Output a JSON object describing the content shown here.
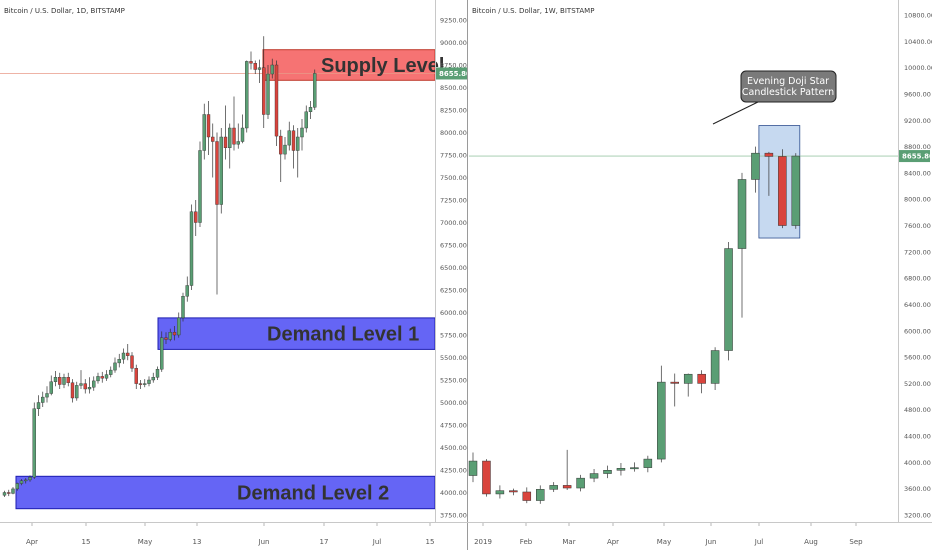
{
  "colors": {
    "up": "#5a9e74",
    "down": "#d9443d",
    "supply": "#f45b5b",
    "demand": "#3f3ff2",
    "highlight": "#8db4e2"
  },
  "chart_data": [
    {
      "type": "candlestick",
      "title": "Bitcoin / U.S. Dollar, 1D, BITSTAMP",
      "x_ticks": [
        "Apr",
        "15",
        "May",
        "13",
        "Jun",
        "17",
        "Jul",
        "15"
      ],
      "y_ticks": [
        "9250.00",
        "9000.00",
        "8750.00",
        "8500.00",
        "8250.00",
        "8000.00",
        "7750.00",
        "7500.00",
        "7250.00",
        "7000.00",
        "6750.00",
        "6500.00",
        "6250.00",
        "6000.00",
        "5750.00",
        "5500.00",
        "5250.00",
        "5000.00",
        "4750.00",
        "4500.00",
        "4250.00",
        "4000.00",
        "3750.00"
      ],
      "ylim": [
        3650,
        9400
      ],
      "last_price": "8655.80",
      "zones": [
        {
          "label": "Supply Level",
          "low": 8580,
          "high": 8920
        },
        {
          "label": "Demand Level 1",
          "low": 5590,
          "high": 5940
        },
        {
          "label": "Demand Level 2",
          "low": 3820,
          "high": 4180
        }
      ],
      "candles": [
        [
          3970,
          4000,
          3950,
          4020
        ],
        [
          4000,
          3990,
          3960,
          4030
        ],
        [
          3990,
          4040,
          3980,
          4060
        ],
        [
          4040,
          4100,
          4020,
          4110
        ],
        [
          4100,
          4130,
          4080,
          4150
        ],
        [
          4130,
          4140,
          4100,
          4160
        ],
        [
          4140,
          4170,
          4120,
          4190
        ],
        [
          4170,
          4930,
          4150,
          5000
        ],
        [
          4930,
          5000,
          4850,
          5080
        ],
        [
          5000,
          5060,
          4950,
          5120
        ],
        [
          5060,
          5100,
          5000,
          5180
        ],
        [
          5100,
          5230,
          5080,
          5300
        ],
        [
          5230,
          5280,
          5180,
          5350
        ],
        [
          5280,
          5200,
          5150,
          5330
        ],
        [
          5200,
          5280,
          5160,
          5320
        ],
        [
          5280,
          5220,
          5180,
          5330
        ],
        [
          5220,
          5050,
          5000,
          5260
        ],
        [
          5050,
          5190,
          5020,
          5230
        ],
        [
          5190,
          5210,
          5150,
          5360
        ],
        [
          5210,
          5150,
          5100,
          5260
        ],
        [
          5150,
          5170,
          5100,
          5280
        ],
        [
          5170,
          5240,
          5130,
          5290
        ],
        [
          5240,
          5290,
          5210,
          5330
        ],
        [
          5290,
          5270,
          5220,
          5340
        ],
        [
          5270,
          5310,
          5240,
          5360
        ],
        [
          5310,
          5360,
          5280,
          5400
        ],
        [
          5360,
          5440,
          5330,
          5500
        ],
        [
          5440,
          5480,
          5390,
          5540
        ],
        [
          5480,
          5550,
          5430,
          5600
        ],
        [
          5550,
          5520,
          5470,
          5650
        ],
        [
          5520,
          5380,
          5340,
          5560
        ],
        [
          5380,
          5210,
          5150,
          5420
        ],
        [
          5210,
          5200,
          5150,
          5250
        ],
        [
          5200,
          5210,
          5170,
          5260
        ],
        [
          5210,
          5250,
          5180,
          5290
        ],
        [
          5250,
          5280,
          5220,
          5330
        ],
        [
          5280,
          5370,
          5250,
          5400
        ],
        [
          5370,
          5720,
          5340,
          5790
        ],
        [
          5720,
          5700,
          5650,
          5780
        ],
        [
          5700,
          5780,
          5680,
          5820
        ],
        [
          5780,
          5750,
          5690,
          5850
        ],
        [
          5750,
          5940,
          5720,
          6000
        ],
        [
          5940,
          6180,
          5900,
          6220
        ],
        [
          6180,
          6300,
          6120,
          6400
        ],
        [
          6300,
          7120,
          6250,
          7200
        ],
        [
          7120,
          7000,
          6850,
          7250
        ],
        [
          7000,
          7800,
          6950,
          7900
        ],
        [
          7800,
          8200,
          7700,
          8320
        ],
        [
          8200,
          7950,
          7750,
          8350
        ],
        [
          7950,
          7900,
          7500,
          8100
        ],
        [
          7900,
          7200,
          6200,
          8000
        ],
        [
          7200,
          7950,
          7100,
          8050
        ],
        [
          7950,
          7830,
          7700,
          8300
        ],
        [
          7830,
          8050,
          7600,
          8100
        ],
        [
          8050,
          7870,
          7800,
          8400
        ],
        [
          7870,
          7900,
          7820,
          8100
        ],
        [
          7900,
          8050,
          7880,
          8200
        ],
        [
          8050,
          8790,
          8000,
          8800
        ],
        [
          8790,
          8770,
          8700,
          8900
        ],
        [
          8770,
          8700,
          8650,
          8800
        ],
        [
          8700,
          8720,
          8550,
          8810
        ],
        [
          8720,
          8200,
          8050,
          9070
        ],
        [
          8200,
          8650,
          8150,
          8750
        ],
        [
          8650,
          8750,
          8600,
          8820
        ],
        [
          8750,
          7960,
          7850,
          8800
        ],
        [
          7960,
          7760,
          7450,
          8030
        ],
        [
          7760,
          7860,
          7700,
          7950
        ],
        [
          7860,
          8020,
          7800,
          8120
        ],
        [
          8020,
          7800,
          7600,
          8080
        ],
        [
          7800,
          7950,
          7500,
          8050
        ],
        [
          7950,
          8050,
          7800,
          8150
        ],
        [
          8050,
          8230,
          8000,
          8300
        ],
        [
          8230,
          8280,
          8150,
          8350
        ],
        [
          8280,
          8656,
          8250,
          8700
        ]
      ]
    },
    {
      "type": "candlestick",
      "title": "Bitcoin / U.S. Dollar, 1W, BITSTAMP",
      "x_ticks": [
        "2019",
        "Feb",
        "Mar",
        "Apr",
        "May",
        "Jun",
        "Jul",
        "Aug",
        "Sep"
      ],
      "y_ticks": [
        "10800.00",
        "10400.00",
        "10000.00",
        "9600.00",
        "9200.00",
        "8800.00",
        "8400.00",
        "8000.00",
        "7600.00",
        "7200.00",
        "6800.00",
        "6400.00",
        "6000.00",
        "5600.00",
        "5200.00",
        "4800.00",
        "4400.00",
        "4000.00",
        "3600.00",
        "3200.00"
      ],
      "ylim": [
        3050,
        11000
      ],
      "last_price": "8655.80",
      "annotation": "Evening Doji Star\nCandlestick Pattern",
      "candles": [
        [
          3800,
          4020,
          3700,
          4150
        ],
        [
          4020,
          3520,
          3480,
          4050
        ],
        [
          3520,
          3570,
          3450,
          3650
        ],
        [
          3570,
          3550,
          3500,
          3600
        ],
        [
          3550,
          3420,
          3380,
          3620
        ],
        [
          3420,
          3590,
          3370,
          3650
        ],
        [
          3590,
          3650,
          3550,
          3700
        ],
        [
          3650,
          3610,
          3580,
          4190
        ],
        [
          3610,
          3760,
          3560,
          3810
        ],
        [
          3760,
          3830,
          3700,
          3900
        ],
        [
          3830,
          3880,
          3760,
          3950
        ],
        [
          3880,
          3910,
          3800,
          3990
        ],
        [
          3910,
          3920,
          3860,
          4000
        ],
        [
          3920,
          4050,
          3850,
          4100
        ],
        [
          4050,
          5220,
          4000,
          5470
        ],
        [
          5220,
          5200,
          4850,
          5350
        ],
        [
          5200,
          5340,
          5000,
          5350
        ],
        [
          5340,
          5200,
          5050,
          5400
        ],
        [
          5200,
          5700,
          5100,
          5750
        ],
        [
          5700,
          7250,
          5550,
          7350
        ],
        [
          7250,
          8300,
          6200,
          8400
        ],
        [
          8300,
          8700,
          8100,
          8800
        ],
        [
          8700,
          8650,
          8050,
          8720
        ],
        [
          8650,
          7600,
          7560,
          8760
        ],
        [
          7600,
          8656,
          7550,
          8700
        ]
      ]
    }
  ]
}
